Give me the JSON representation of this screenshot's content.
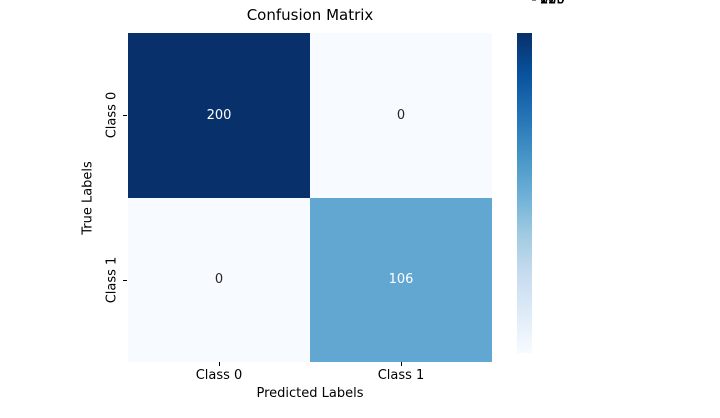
{
  "title": "Confusion Matrix",
  "axes": {
    "xlabel": "Predicted Labels",
    "ylabel": "True Labels",
    "x_ticks": [
      "Class 0",
      "Class 1"
    ],
    "y_ticks": [
      "Class 0",
      "Class 1"
    ]
  },
  "cells": [
    {
      "value": "200",
      "style": "background:#08306b;color:#ffffff"
    },
    {
      "value": "0",
      "style": "background:#f7fbff;color:#262626"
    },
    {
      "value": "0",
      "style": "background:#f7fbff;color:#262626"
    },
    {
      "value": "106",
      "style": "background:#61a7d2;color:#ffffff"
    }
  ],
  "colorbar": {
    "tick_labels": [
      "200",
      "175",
      "150",
      "125",
      "100",
      "75",
      "50",
      "25",
      "0"
    ],
    "gradient_style": "background:linear-gradient(to top,#f7fbff 0%,#deebf7 12.5%,#c6dbef 25%,#9ecae1 37.5%,#6baed6 50%,#4292c6 62.5%,#2171b5 75%,#08519c 87.5%,#08306b 100%)"
  },
  "colors": {
    "colormap_max": "#08306b",
    "colormap_min": "#f7fbff",
    "cell_106": "#61a7d2",
    "text": "#000000"
  },
  "chart_data": {
    "type": "heatmap",
    "title": "Confusion Matrix",
    "xlabel": "Predicted Labels",
    "ylabel": "True Labels",
    "x_categories": [
      "Class 0",
      "Class 1"
    ],
    "y_categories": [
      "Class 0",
      "Class 1"
    ],
    "matrix": [
      [
        200,
        0
      ],
      [
        0,
        106
      ]
    ],
    "annotations": [
      [
        "200",
        "0"
      ],
      [
        "0",
        "106"
      ]
    ],
    "colormap": "Blues",
    "colorbar_range": [
      0,
      200
    ],
    "colorbar_ticks": [
      0,
      25,
      50,
      75,
      100,
      125,
      150,
      175,
      200
    ],
    "colorbar_position": "right",
    "grid": false
  }
}
